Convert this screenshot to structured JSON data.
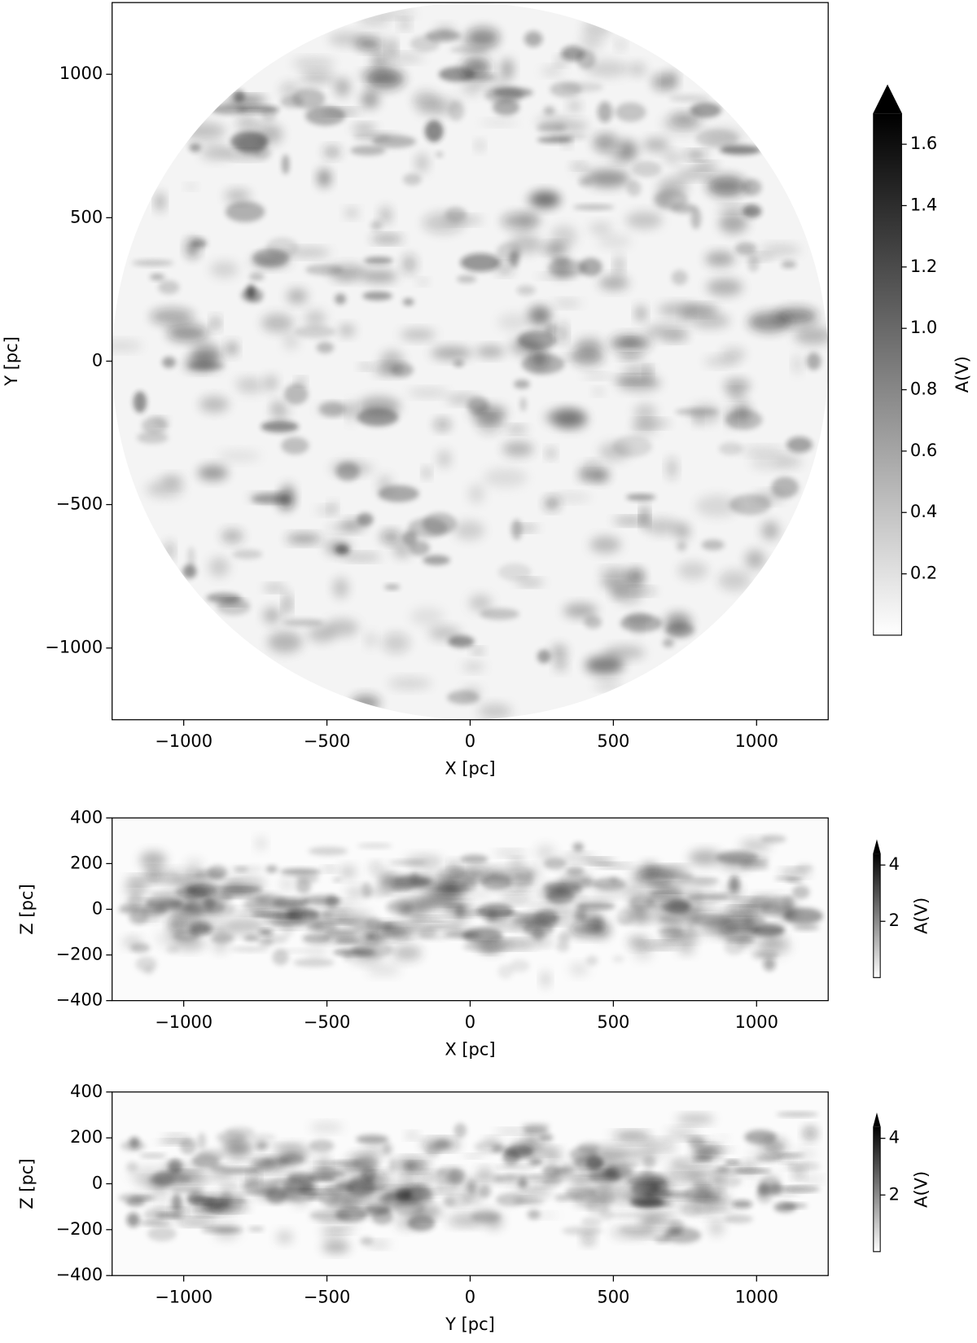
{
  "chart_data": [
    {
      "type": "image",
      "xlabel": "X [pc]",
      "ylabel": "Y [pc]",
      "xlim": [
        -1250,
        1250
      ],
      "ylim": [
        -1250,
        1250
      ],
      "xticks": [
        {
          "value": -1000,
          "label": "−1000"
        },
        {
          "value": -500,
          "label": "−500"
        },
        0,
        500,
        1000
      ],
      "yticks": [
        {
          "value": -1000,
          "label": "−1000"
        },
        {
          "value": -500,
          "label": "−500"
        },
        0,
        500,
        1000
      ],
      "colors": [
        "#ffffff",
        "#000000"
      ],
      "colorbar": {
        "label": "A(V)",
        "lim": [
          0,
          1.7
        ],
        "extend": "max",
        "ticks": [
          0.2,
          0.4,
          0.6,
          0.8,
          {
            "value": 1,
            "label": "1.0"
          },
          1.2,
          1.4,
          1.6
        ]
      }
    },
    {
      "type": "image",
      "xlabel": "X [pc]",
      "ylabel": "Z [pc]",
      "xlim": [
        -1250,
        1250
      ],
      "ylim": [
        -400,
        400
      ],
      "xticks": [
        {
          "value": -1000,
          "label": "−1000"
        },
        {
          "value": -500,
          "label": "−500"
        },
        0,
        500,
        1000
      ],
      "yticks": [
        {
          "value": -400,
          "label": "−400"
        },
        {
          "value": -200,
          "label": "−200"
        },
        0,
        200,
        400
      ],
      "colors": [
        "#ffffff",
        "#000000"
      ],
      "colorbar": {
        "label": "A(V)",
        "lim": [
          0,
          4.4
        ],
        "extend": "max",
        "ticks": [
          2,
          4
        ]
      }
    },
    {
      "type": "image",
      "xlabel": "Y [pc]",
      "ylabel": "Z [pc]",
      "xlim": [
        -1250,
        1250
      ],
      "ylim": [
        -400,
        400
      ],
      "xticks": [
        {
          "value": -1000,
          "label": "−1000"
        },
        {
          "value": -500,
          "label": "−500"
        },
        0,
        500,
        1000
      ],
      "yticks": [
        {
          "value": -400,
          "label": "−400"
        },
        {
          "value": -200,
          "label": "−200"
        },
        0,
        200,
        400
      ],
      "colors": [
        "#ffffff",
        "#000000"
      ],
      "colorbar": {
        "label": "A(V)",
        "lim": [
          0,
          4.4
        ],
        "extend": "max",
        "ticks": [
          2,
          4
        ]
      }
    }
  ]
}
